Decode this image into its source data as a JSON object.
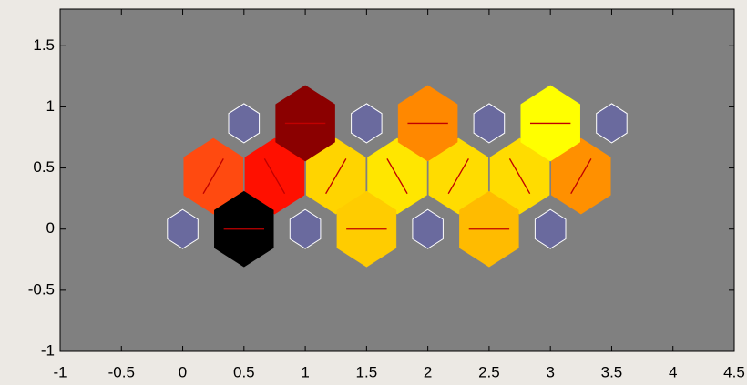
{
  "chart_data": {
    "type": "hexagon",
    "xlim": [
      -1,
      4.5
    ],
    "ylim": [
      -1,
      1.8
    ],
    "xticks": [
      -1,
      -0.5,
      0,
      0.5,
      1,
      1.5,
      2,
      2.5,
      3,
      3.5,
      4,
      4.5
    ],
    "yticks": [
      -1,
      -0.5,
      0,
      0.5,
      1,
      1.5
    ],
    "background": "#808080",
    "line_color": "#c00000",
    "cells": [
      {
        "x": 0.25,
        "y": 0.433,
        "r": 0.31,
        "color": "#ff4a10",
        "angle": 60
      },
      {
        "x": 0.75,
        "y": 0.433,
        "r": 0.31,
        "color": "#ff1000",
        "angle": 120
      },
      {
        "x": 1.25,
        "y": 0.433,
        "r": 0.31,
        "color": "#ffd400",
        "angle": 60
      },
      {
        "x": 1.75,
        "y": 0.433,
        "r": 0.31,
        "color": "#ffe600",
        "angle": 120
      },
      {
        "x": 2.25,
        "y": 0.433,
        "r": 0.31,
        "color": "#ffdc00",
        "angle": 60
      },
      {
        "x": 2.75,
        "y": 0.433,
        "r": 0.31,
        "color": "#ffdc00",
        "angle": 120
      },
      {
        "x": 3.25,
        "y": 0.433,
        "r": 0.31,
        "color": "#ff9000",
        "angle": 60
      },
      {
        "x": 0.5,
        "y": 0,
        "r": 0.31,
        "color": "#000000",
        "angle": 0
      },
      {
        "x": 1.5,
        "y": 0,
        "r": 0.31,
        "color": "#ffcc00",
        "angle": 0
      },
      {
        "x": 2.5,
        "y": 0,
        "r": 0.31,
        "color": "#ffbb00",
        "angle": 0
      },
      {
        "x": 1,
        "y": 0.866,
        "r": 0.31,
        "color": "#8b0000",
        "angle": 0
      },
      {
        "x": 2,
        "y": 0.866,
        "r": 0.31,
        "color": "#ff8800",
        "angle": 0
      },
      {
        "x": 3,
        "y": 0.866,
        "r": 0.31,
        "color": "#ffff00",
        "angle": 0
      },
      {
        "x": 0,
        "y": 0,
        "r": 0.16,
        "color": "#6a6a9e"
      },
      {
        "x": 1,
        "y": 0,
        "r": 0.16,
        "color": "#6a6a9e"
      },
      {
        "x": 2,
        "y": 0,
        "r": 0.16,
        "color": "#6a6a9e"
      },
      {
        "x": 3,
        "y": 0,
        "r": 0.16,
        "color": "#6a6a9e"
      },
      {
        "x": 0.5,
        "y": 0.866,
        "r": 0.16,
        "color": "#6a6a9e"
      },
      {
        "x": 1.5,
        "y": 0.866,
        "r": 0.16,
        "color": "#6a6a9e"
      },
      {
        "x": 2.5,
        "y": 0.866,
        "r": 0.16,
        "color": "#6a6a9e"
      },
      {
        "x": 3.5,
        "y": 0.866,
        "r": 0.16,
        "color": "#6a6a9e"
      }
    ]
  }
}
